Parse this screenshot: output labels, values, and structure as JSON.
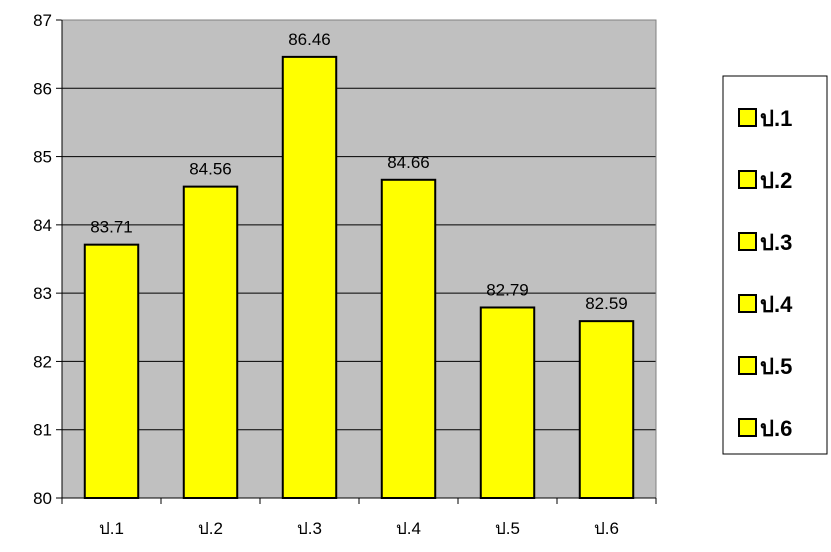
{
  "chart_data": {
    "type": "bar",
    "title": "",
    "xlabel": "",
    "ylabel": "",
    "categories": [
      "ป.1",
      "ป.2",
      "ป.3",
      "ป.4",
      "ป.5",
      "ป.6"
    ],
    "values": [
      83.71,
      84.56,
      86.46,
      84.66,
      82.79,
      82.59
    ],
    "data_labels": [
      "83.71",
      "84.56",
      "86.46",
      "84.66",
      "82.79",
      "82.59"
    ],
    "ylim": [
      80,
      87
    ],
    "yticks": [
      "80",
      "81",
      "82",
      "83",
      "84",
      "85",
      "86",
      "87"
    ],
    "grid": true,
    "legend": {
      "position": "right",
      "entries": [
        "ป.1",
        "ป.2",
        "ป.3",
        "ป.4",
        "ป.5",
        "ป.6"
      ]
    },
    "colors": {
      "bar_fill": "#FFFF00",
      "bar_stroke": "#000000",
      "plot_background": "#C0C0C0",
      "gridline": "#000000"
    }
  }
}
